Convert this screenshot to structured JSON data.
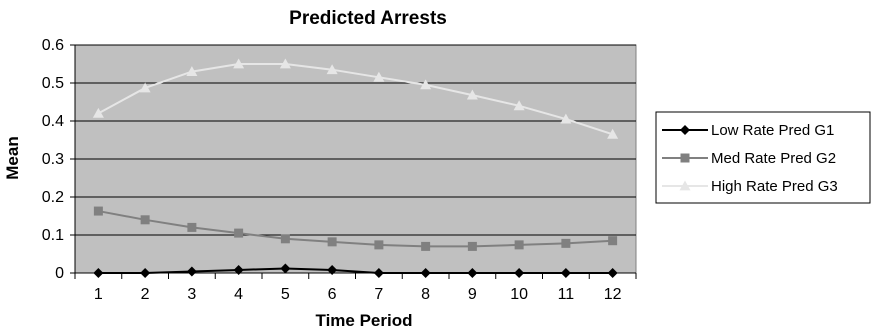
{
  "chart_data": {
    "type": "line",
    "title": "Predicted Arrests",
    "xlabel": "Time Period",
    "ylabel": "Mean",
    "categories": [
      "1",
      "2",
      "3",
      "4",
      "5",
      "6",
      "7",
      "8",
      "9",
      "10",
      "11",
      "12"
    ],
    "ylim": [
      0,
      0.6
    ],
    "yticks": [
      "0",
      "0.1",
      "0.2",
      "0.3",
      "0.4",
      "0.5",
      "0.6"
    ],
    "grid": true,
    "legend_position": "right",
    "plot_background": "#c0c0c0",
    "series": [
      {
        "name": "Low Rate Pred G1",
        "marker": "diamond",
        "color": "#000000",
        "values": [
          0.0,
          0.0,
          0.004,
          0.008,
          0.012,
          0.008,
          0.0,
          0.0,
          0.0,
          0.0,
          0.0,
          0.0
        ]
      },
      {
        "name": "Med Rate Pred G2",
        "marker": "square",
        "color": "#808080",
        "values": [
          0.163,
          0.14,
          0.12,
          0.105,
          0.09,
          0.082,
          0.074,
          0.07,
          0.07,
          0.074,
          0.078,
          0.085
        ]
      },
      {
        "name": "High Rate Pred G3",
        "marker": "triangle",
        "color": "#e6e6e6",
        "values": [
          0.42,
          0.487,
          0.53,
          0.55,
          0.55,
          0.535,
          0.515,
          0.495,
          0.468,
          0.44,
          0.405,
          0.365
        ]
      }
    ]
  }
}
